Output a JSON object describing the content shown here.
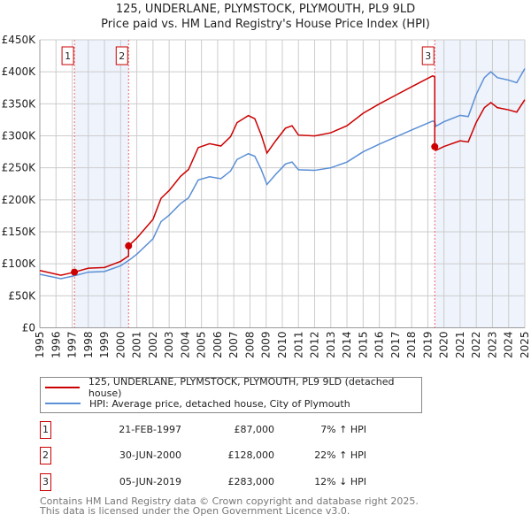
{
  "title": "125, UNDERLANE, PLYMSTOCK, PLYMOUTH, PL9 9LD",
  "subtitle": "Price paid vs. HM Land Registry's House Price Index (HPI)",
  "colors": {
    "property": "#cc0000",
    "hpi": "#5b8fd6",
    "shade": "#eef3fc",
    "grid": "#cccccc"
  },
  "chart_data": {
    "type": "line",
    "title": "125, UNDERLANE, PLYMSTOCK, PLYMOUTH, PL9 9LD — Price paid vs. HM Land Registry's House Price Index (HPI)",
    "xlim": [
      1995,
      2025
    ],
    "ylim": [
      0,
      450000
    ],
    "grid": true,
    "x_ticks": [
      "1995",
      "1996",
      "1997",
      "1998",
      "1999",
      "2000",
      "2001",
      "2002",
      "2003",
      "2004",
      "2005",
      "2006",
      "2007",
      "2008",
      "2009",
      "2010",
      "2011",
      "2012",
      "2013",
      "2014",
      "2015",
      "2016",
      "2017",
      "2018",
      "2019",
      "2020",
      "2021",
      "2022",
      "2023",
      "2024",
      "2025"
    ],
    "y_ticks": [
      {
        "value": 0,
        "label": "£0"
      },
      {
        "value": 50000,
        "label": "£50K"
      },
      {
        "value": 100000,
        "label": "£100K"
      },
      {
        "value": 150000,
        "label": "£150K"
      },
      {
        "value": 200000,
        "label": "£200K"
      },
      {
        "value": 250000,
        "label": "£250K"
      },
      {
        "value": 300000,
        "label": "£300K"
      },
      {
        "value": 350000,
        "label": "£350K"
      },
      {
        "value": 400000,
        "label": "£400K"
      },
      {
        "value": 450000,
        "label": "£450K"
      }
    ],
    "hpi_series": {
      "name": "HPI: Average price, detached house, City of Plymouth",
      "x": [
        1995,
        1996.3,
        1997,
        1997.14,
        1998,
        1999,
        2000,
        2000.49,
        2001,
        2002,
        2002.5,
        2003,
        2003.7,
        2004.2,
        2004.8,
        2005.5,
        2006.2,
        2006.8,
        2007.2,
        2007.9,
        2008.3,
        2008.7,
        2009.05,
        2009.6,
        2010.2,
        2010.6,
        2011,
        2012,
        2013,
        2014,
        2015,
        2016,
        2017,
        2018,
        2019.3,
        2019.43,
        2019.5,
        2020,
        2021,
        2021.5,
        2022,
        2022.5,
        2022.9,
        2023.3,
        2024,
        2024.5,
        2025
      ],
      "y": [
        83600,
        76700,
        80500,
        81300,
        87000,
        88000,
        97000,
        105000,
        115000,
        139000,
        166000,
        176000,
        194000,
        203000,
        231000,
        236000,
        233000,
        245000,
        263000,
        272000,
        268000,
        247000,
        224000,
        240000,
        256000,
        259000,
        247000,
        246000,
        250000,
        259000,
        275000,
        287000,
        298000,
        309000,
        323000,
        321600,
        315000,
        322000,
        332000,
        330000,
        365000,
        391000,
        400000,
        391000,
        387000,
        383000,
        405000
      ]
    },
    "property_series": {
      "name": "125, UNDERLANE, PLYMSTOCK, PLYMOUTH, PL9 9LD (detached house)",
      "note": "price paid indexed by HPI from each sale"
    },
    "sales": [
      {
        "label": "1",
        "x": 1997.14,
        "date": "21-FEB-1997",
        "price": 87000,
        "price_text": "£87,000",
        "hpi_text": "7% ↑ HPI"
      },
      {
        "label": "2",
        "x": 2000.49,
        "date": "30-JUN-2000",
        "price": 128000,
        "price_text": "£128,000",
        "hpi_text": "22% ↑ HPI"
      },
      {
        "label": "3",
        "x": 2019.43,
        "date": "05-JUN-2019",
        "price": 283000,
        "price_text": "£283,000",
        "hpi_text": "12% ↓ HPI"
      }
    ],
    "shaded_ranges": [
      [
        1997.14,
        2000.49
      ],
      [
        2019.43,
        2025
      ]
    ]
  },
  "legend": {
    "property": "125, UNDERLANE, PLYMSTOCK, PLYMOUTH, PL9 9LD (detached house)",
    "hpi": "HPI: Average price, detached house, City of Plymouth"
  },
  "footer": {
    "line1": "Contains HM Land Registry data © Crown copyright and database right 2025.",
    "line2": "This data is licensed under the Open Government Licence v3.0."
  }
}
